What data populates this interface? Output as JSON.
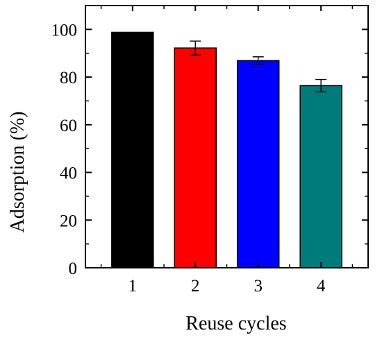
{
  "chart_data": {
    "type": "bar",
    "xlabel": "Reuse cycles",
    "ylabel": "Adsorption (%)",
    "categories": [
      "1",
      "2",
      "3",
      "4"
    ],
    "values": [
      98.8,
      92.2,
      86.9,
      76.4
    ],
    "errors": [
      0,
      2.9,
      1.6,
      2.6
    ],
    "colors": [
      "#000000",
      "#ff0000",
      "#0000ff",
      "#007b7b"
    ],
    "ylim": [
      0,
      110
    ],
    "yticks": [
      0,
      20,
      40,
      60,
      80,
      100
    ],
    "grid": false,
    "legend": "none"
  }
}
